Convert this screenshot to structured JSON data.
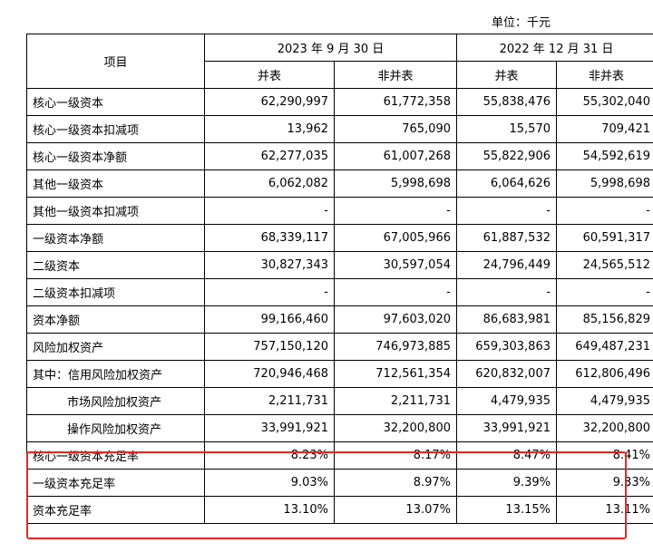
{
  "unit_label": "单位：千元",
  "header": {
    "item_label": "项目",
    "periods": [
      "2023 年 9 月 30 日",
      "2022 年 12 月 31 日"
    ],
    "sub": [
      "并表",
      "非并表",
      "并表",
      "非并表"
    ]
  },
  "rows": [
    {
      "label": "核心一级资本",
      "values": [
        "62,290,997",
        "61,772,358",
        "55,838,476",
        "55,302,040"
      ]
    },
    {
      "label": "核心一级资本扣减项",
      "values": [
        "13,962",
        "765,090",
        "15,570",
        "709,421"
      ]
    },
    {
      "label": "核心一级资本净额",
      "values": [
        "62,277,035",
        "61,007,268",
        "55,822,906",
        "54,592,619"
      ]
    },
    {
      "label": "其他一级资本",
      "values": [
        "6,062,082",
        "5,998,698",
        "6,064,626",
        "5,998,698"
      ]
    },
    {
      "label": "其他一级资本扣减项",
      "values": [
        "-",
        "-",
        "-",
        "-"
      ]
    },
    {
      "label": "一级资本净额",
      "values": [
        "68,339,117",
        "67,005,966",
        "61,887,532",
        "60,591,317"
      ]
    },
    {
      "label": "二级资本",
      "values": [
        "30,827,343",
        "30,597,054",
        "24,796,449",
        "24,565,512"
      ]
    },
    {
      "label": "二级资本扣减项",
      "values": [
        "-",
        "-",
        "-",
        "-"
      ]
    },
    {
      "label": "资本净额",
      "values": [
        "99,166,460",
        "97,603,020",
        "86,683,981",
        "85,156,829"
      ]
    },
    {
      "label": "风险加权资产",
      "values": [
        "757,150,120",
        "746,973,885",
        "659,303,863",
        "649,487,231"
      ]
    },
    {
      "label": "其中：信用风险加权资产",
      "values": [
        "720,946,468",
        "712,561,354",
        "620,832,007",
        "612,806,496"
      ]
    },
    {
      "label": "市场风险加权资产",
      "values": [
        "2,211,731",
        "2,211,731",
        "4,479,935",
        "4,479,935"
      ]
    },
    {
      "label": "操作风险加权资产",
      "values": [
        "33,991,921",
        "32,200,800",
        "33,991,921",
        "32,200,800"
      ]
    },
    {
      "label": "核心一级资本充足率",
      "values": [
        "8.23%",
        "8.17%",
        "8.47%",
        "8.41%"
      ]
    },
    {
      "label": "一级资本充足率",
      "values": [
        "9.03%",
        "8.97%",
        "9.39%",
        "9.33%"
      ]
    },
    {
      "label": "资本充足率",
      "values": [
        "13.10%",
        "13.07%",
        "13.15%",
        "13.11%"
      ]
    }
  ],
  "highlight_color": "#e32626"
}
